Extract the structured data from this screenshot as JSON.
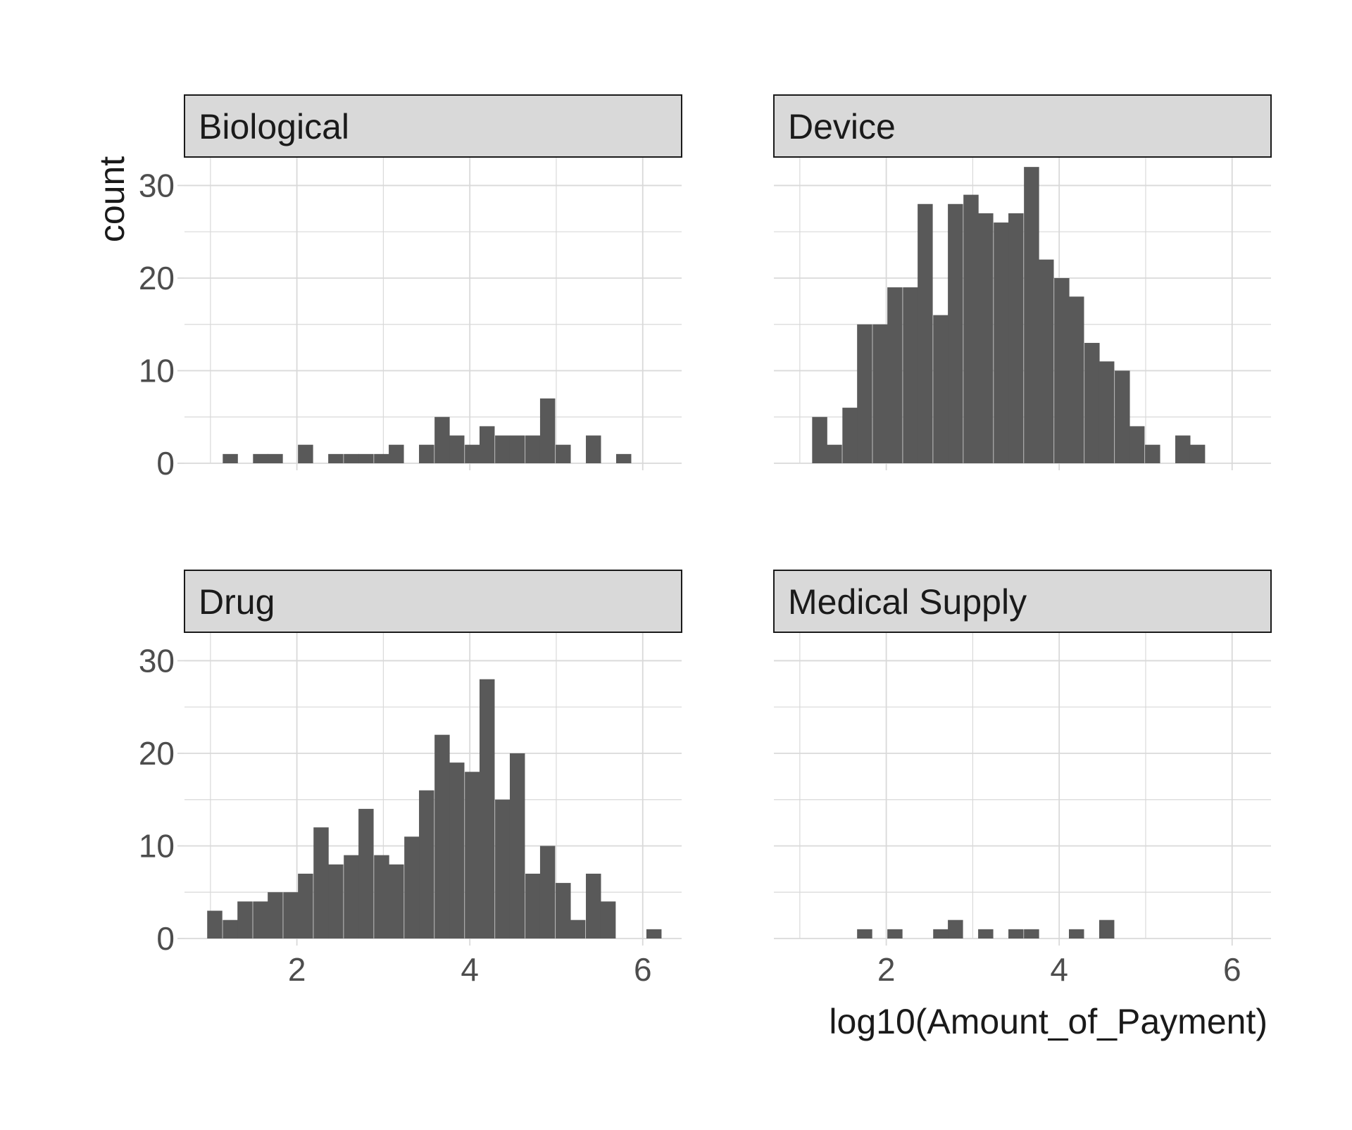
{
  "chart_data": {
    "type": "bar",
    "layout": "facet-grid 2x2 histograms",
    "xlabel": "log10(Amount_of_Payment)",
    "ylabel": "count",
    "xlim": [
      0.7,
      6.45
    ],
    "ylim": [
      0,
      33
    ],
    "x_ticks": [
      2,
      4,
      6
    ],
    "y_ticks": [
      0,
      10,
      20,
      30
    ],
    "bin_width": 0.175,
    "grid": "on",
    "colors": {
      "bar": "#595959",
      "strip_fill": "#d9d9d9",
      "strip_border": "#1a1a1a",
      "grid": "#d9d9d9",
      "tick_text": "#4d4d4d",
      "axis_title": "#1a1a1a"
    },
    "panels": [
      {
        "label": "Biological",
        "bins": [
          {
            "x": 1.23,
            "count": 1
          },
          {
            "x": 1.58,
            "count": 1
          },
          {
            "x": 1.75,
            "count": 1
          },
          {
            "x": 2.1,
            "count": 2
          },
          {
            "x": 2.45,
            "count": 1
          },
          {
            "x": 2.63,
            "count": 1
          },
          {
            "x": 2.8,
            "count": 1
          },
          {
            "x": 2.98,
            "count": 1
          },
          {
            "x": 3.15,
            "count": 2
          },
          {
            "x": 3.5,
            "count": 2
          },
          {
            "x": 3.68,
            "count": 5
          },
          {
            "x": 3.85,
            "count": 3
          },
          {
            "x": 4.03,
            "count": 2
          },
          {
            "x": 4.2,
            "count": 4
          },
          {
            "x": 4.38,
            "count": 3
          },
          {
            "x": 4.55,
            "count": 3
          },
          {
            "x": 4.73,
            "count": 3
          },
          {
            "x": 4.9,
            "count": 7
          },
          {
            "x": 5.08,
            "count": 2
          },
          {
            "x": 5.43,
            "count": 3
          },
          {
            "x": 5.78,
            "count": 1
          }
        ]
      },
      {
        "label": "Device",
        "bins": [
          {
            "x": 1.23,
            "count": 5
          },
          {
            "x": 1.4,
            "count": 2
          },
          {
            "x": 1.58,
            "count": 6
          },
          {
            "x": 1.75,
            "count": 15
          },
          {
            "x": 1.93,
            "count": 15
          },
          {
            "x": 2.1,
            "count": 19
          },
          {
            "x": 2.28,
            "count": 19
          },
          {
            "x": 2.45,
            "count": 28
          },
          {
            "x": 2.63,
            "count": 16
          },
          {
            "x": 2.8,
            "count": 28
          },
          {
            "x": 2.98,
            "count": 29
          },
          {
            "x": 3.15,
            "count": 27
          },
          {
            "x": 3.33,
            "count": 26
          },
          {
            "x": 3.5,
            "count": 27
          },
          {
            "x": 3.68,
            "count": 32
          },
          {
            "x": 3.85,
            "count": 22
          },
          {
            "x": 4.03,
            "count": 20
          },
          {
            "x": 4.2,
            "count": 18
          },
          {
            "x": 4.38,
            "count": 13
          },
          {
            "x": 4.55,
            "count": 11
          },
          {
            "x": 4.73,
            "count": 10
          },
          {
            "x": 4.9,
            "count": 4
          },
          {
            "x": 5.08,
            "count": 2
          },
          {
            "x": 5.43,
            "count": 3
          },
          {
            "x": 5.6,
            "count": 2
          }
        ]
      },
      {
        "label": "Drug",
        "bins": [
          {
            "x": 1.05,
            "count": 3
          },
          {
            "x": 1.23,
            "count": 2
          },
          {
            "x": 1.4,
            "count": 4
          },
          {
            "x": 1.58,
            "count": 4
          },
          {
            "x": 1.75,
            "count": 5
          },
          {
            "x": 1.93,
            "count": 5
          },
          {
            "x": 2.1,
            "count": 7
          },
          {
            "x": 2.28,
            "count": 12
          },
          {
            "x": 2.45,
            "count": 8
          },
          {
            "x": 2.63,
            "count": 9
          },
          {
            "x": 2.8,
            "count": 14
          },
          {
            "x": 2.98,
            "count": 9
          },
          {
            "x": 3.15,
            "count": 8
          },
          {
            "x": 3.33,
            "count": 11
          },
          {
            "x": 3.5,
            "count": 16
          },
          {
            "x": 3.68,
            "count": 22
          },
          {
            "x": 3.85,
            "count": 19
          },
          {
            "x": 4.03,
            "count": 18
          },
          {
            "x": 4.2,
            "count": 28
          },
          {
            "x": 4.38,
            "count": 15
          },
          {
            "x": 4.55,
            "count": 20
          },
          {
            "x": 4.73,
            "count": 7
          },
          {
            "x": 4.9,
            "count": 10
          },
          {
            "x": 5.08,
            "count": 6
          },
          {
            "x": 5.25,
            "count": 2
          },
          {
            "x": 5.43,
            "count": 7
          },
          {
            "x": 5.6,
            "count": 4
          },
          {
            "x": 6.13,
            "count": 1
          }
        ]
      },
      {
        "label": "Medical Supply",
        "bins": [
          {
            "x": 1.75,
            "count": 1
          },
          {
            "x": 2.1,
            "count": 1
          },
          {
            "x": 2.63,
            "count": 1
          },
          {
            "x": 2.8,
            "count": 2
          },
          {
            "x": 3.15,
            "count": 1
          },
          {
            "x": 3.5,
            "count": 1
          },
          {
            "x": 3.68,
            "count": 1
          },
          {
            "x": 4.2,
            "count": 1
          },
          {
            "x": 4.55,
            "count": 2
          }
        ]
      }
    ]
  }
}
